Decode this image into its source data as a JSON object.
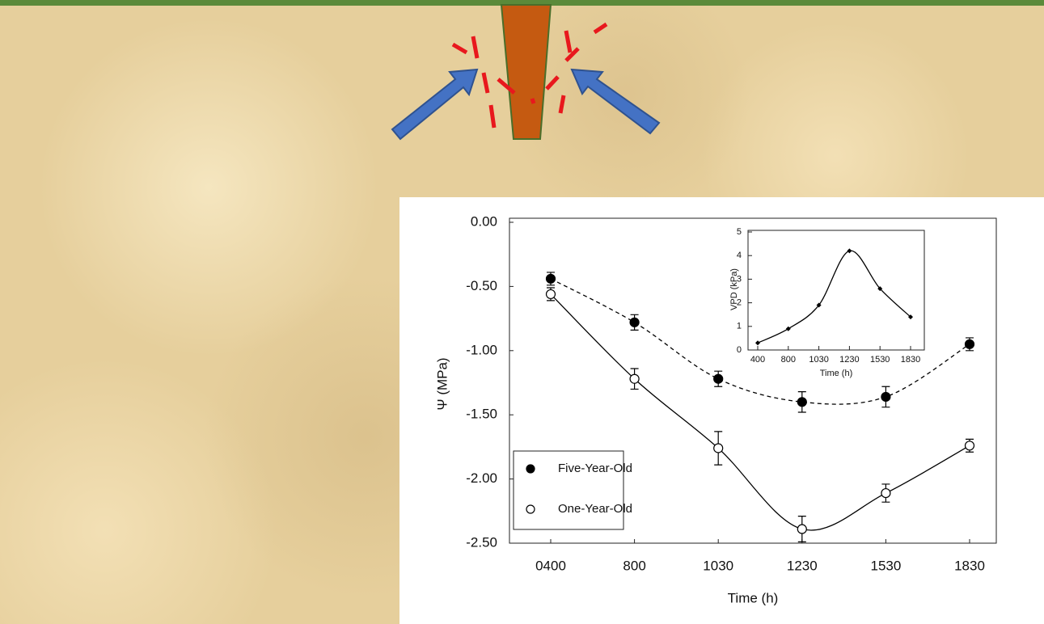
{
  "chart_data": [
    {
      "type": "line",
      "x_label": "Time (h)",
      "y_label": "Ψ (MPa)",
      "categories": [
        "0400",
        "800",
        "1030",
        "1230",
        "1530",
        "1830"
      ],
      "series": [
        {
          "name": "Five-Year-Old",
          "color": "#000000",
          "marker": "filled",
          "dash": true,
          "values": [
            -0.44,
            -0.78,
            -1.22,
            -1.4,
            -1.36,
            -0.95
          ],
          "errors": [
            0.05,
            0.06,
            0.06,
            0.08,
            0.08,
            0.05
          ]
        },
        {
          "name": "One-Year-Old",
          "color": "#000000",
          "marker": "open",
          "dash": false,
          "values": [
            -0.56,
            -1.22,
            -1.76,
            -2.39,
            -2.11,
            -1.74
          ],
          "errors": [
            0.05,
            0.08,
            0.13,
            0.1,
            0.07,
            0.05
          ]
        }
      ],
      "ylim": [
        -2.5,
        0
      ],
      "yticks": [
        {
          "value": 0,
          "label": "0.00"
        },
        {
          "value": -0.5,
          "label": "-0.50"
        },
        {
          "value": -1,
          "label": "-1.00"
        },
        {
          "value": -1.5,
          "label": "-1.50"
        },
        {
          "value": -2,
          "label": "-2.00"
        },
        {
          "value": -2.5,
          "label": "-2.50"
        }
      ]
    },
    {
      "type": "line",
      "x_label": "Time (h)",
      "y_label": "VPD (kPa)",
      "categories": [
        "400",
        "800",
        "1030",
        "1230",
        "1530",
        "1830"
      ],
      "series": [
        {
          "color": "#000000",
          "marker": "diamond",
          "dash": false,
          "values": [
            0.3,
            0.9,
            1.9,
            4.2,
            2.6,
            1.4
          ]
        }
      ],
      "ylim": [
        0,
        5
      ],
      "yticks": [
        0,
        1,
        2,
        3,
        4,
        5
      ]
    }
  ]
}
